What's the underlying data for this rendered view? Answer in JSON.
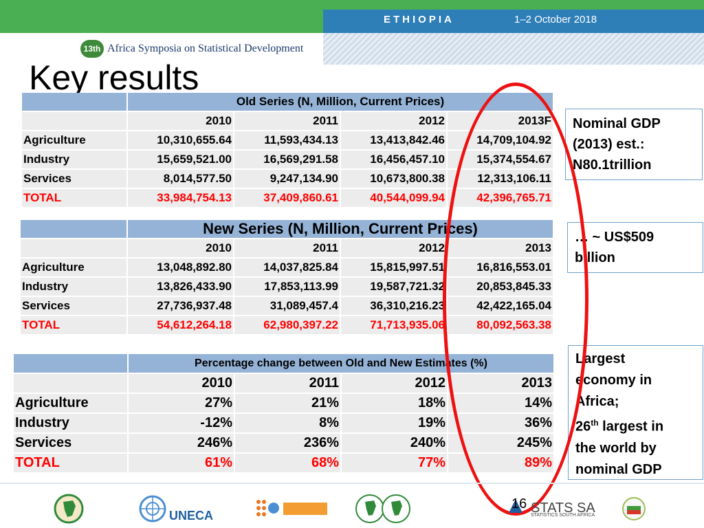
{
  "header": {
    "country": "ETHIOPIA",
    "date": "1–2 October 2018",
    "symposium_badge": "13th",
    "symposium_name": "Africa Symposia on Statistical Development"
  },
  "title": "Key results",
  "old_series": {
    "caption": "Old Series (N, Million, Current Prices)",
    "years": [
      "2010",
      "2011",
      "2012",
      "2013F"
    ],
    "rows": [
      {
        "label": "Agriculture",
        "values": [
          "10,310,655.64",
          "11,593,434.13",
          "13,413,842.46",
          "14,709,104.92"
        ]
      },
      {
        "label": "Industry",
        "values": [
          "15,659,521.00",
          "16,569,291.58",
          "16,456,457.10",
          "15,374,554.67"
        ]
      },
      {
        "label": "Services",
        "values": [
          "8,014,577.50",
          "9,247,134.90",
          "10,673,800.38",
          "12,313,106.11"
        ]
      },
      {
        "label": "TOTAL",
        "values": [
          "33,984,754.13",
          "37,409,860.61",
          "40,544,099.94",
          "42,396,765.71"
        ]
      }
    ]
  },
  "new_series": {
    "caption": "New Series (N, Million, Current Prices)",
    "years": [
      "2010",
      "2011",
      "2012",
      "2013"
    ],
    "rows": [
      {
        "label": "Agriculture",
        "values": [
          "13,048,892.80",
          "14,037,825.84",
          "15,815,997.51",
          "16,816,553.01"
        ]
      },
      {
        "label": "Industry",
        "values": [
          "13,826,433.90",
          "17,853,113.99",
          "19,587,721.32",
          "20,853,845.33"
        ]
      },
      {
        "label": "Services",
        "values": [
          "27,736,937.48",
          "31,089,457.4",
          "36,310,216.23",
          "42,422,165.04"
        ]
      },
      {
        "label": "TOTAL",
        "values": [
          "54,612,264.18",
          "62,980,397.22",
          "71,713,935.06",
          "80,092,563.38"
        ]
      }
    ]
  },
  "pct_change": {
    "caption": "Percentage change between Old and New Estimates (%)",
    "years": [
      "2010",
      "2011",
      "2012",
      "2013"
    ],
    "rows": [
      {
        "label": "Agriculture",
        "values": [
          "27%",
          "21%",
          "18%",
          "14%"
        ]
      },
      {
        "label": "Industry",
        "values": [
          "-12%",
          "8%",
          "19%",
          "36%"
        ]
      },
      {
        "label": "Services",
        "values": [
          "246%",
          "236%",
          "240%",
          "245%"
        ]
      },
      {
        "label": "TOTAL",
        "values": [
          "61%",
          "68%",
          "77%",
          "89%"
        ]
      }
    ]
  },
  "side": {
    "box1": [
      "Nominal GDP",
      "(2013) est.:",
      "N80.1trillion"
    ],
    "box2": [
      "… ~ US$509",
      "billion"
    ],
    "box3": {
      "line1": "Largest",
      "line2": "economy in",
      "line3": "Africa;",
      "line4_num": "26",
      "line4_sup": "th",
      "line4_rest": " largest in",
      "line5": "the world by",
      "line6": "nominal GDP"
    }
  },
  "footer": {
    "page_number": "16",
    "uneca": "UNECA",
    "statssa": "STATS SA",
    "statssa_sub": "STATISTICS SOUTH AFRICA"
  },
  "colors": {
    "header_green": "#4aaf53",
    "header_blue": "#2e7fb8",
    "table_header_blue": "#95b3d7",
    "table_cell_gray": "#ececec",
    "total_red": "#ff0000",
    "oval_red": "#ee1111"
  }
}
